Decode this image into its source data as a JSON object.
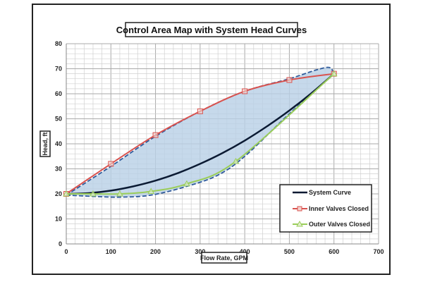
{
  "chart_data": {
    "type": "line",
    "title": "Control Area Map with System Head Curves",
    "xlabel": "Flow Rate, GPM",
    "ylabel": "Head, ft",
    "xlim": [
      0,
      700
    ],
    "ylim": [
      0,
      80
    ],
    "xticks": [
      0,
      100,
      200,
      300,
      400,
      500,
      600,
      700
    ],
    "yticks": [
      0,
      10,
      20,
      30,
      40,
      50,
      60,
      70,
      80
    ],
    "grid": true,
    "legend_position": "bottom-right",
    "series": [
      {
        "name": "System Curve",
        "color": "#0b1a33",
        "marker": "none",
        "x": [
          0,
          50,
          100,
          150,
          200,
          250,
          300,
          350,
          400,
          450,
          500,
          550,
          600
        ],
        "y": [
          20,
          20.3,
          21.3,
          23,
          25.3,
          28.3,
          32,
          36.3,
          41.3,
          47,
          53.3,
          60.3,
          68
        ]
      },
      {
        "name": "Inner Valves Closed",
        "color": "#d9534f",
        "marker": "square",
        "x": [
          0,
          100,
          200,
          300,
          400,
          500,
          600
        ],
        "y": [
          20,
          32,
          43.5,
          53,
          61,
          65.5,
          68
        ]
      },
      {
        "name": "Outer Valves Closed",
        "color": "#9acd5a",
        "marker": "triangle",
        "x": [
          0,
          60,
          120,
          190,
          270,
          380,
          600
        ],
        "y": [
          20,
          20,
          20,
          21,
          24,
          33,
          68
        ]
      }
    ],
    "shaded_region": {
      "fill": "#b8d0e6",
      "stroke": "#2f5a9a",
      "stroke_style": "dashed",
      "upper": {
        "x": [
          0,
          100,
          200,
          300,
          400,
          500,
          560,
          590,
          600
        ],
        "y": [
          19.5,
          31,
          43,
          53,
          61,
          66,
          69.5,
          70.5,
          68
        ]
      },
      "lower": {
        "x": [
          0,
          60,
          120,
          190,
          270,
          340,
          400,
          500,
          600
        ],
        "y": [
          19.5,
          19,
          18.7,
          19.5,
          23,
          27.5,
          35,
          52,
          68
        ]
      }
    }
  }
}
